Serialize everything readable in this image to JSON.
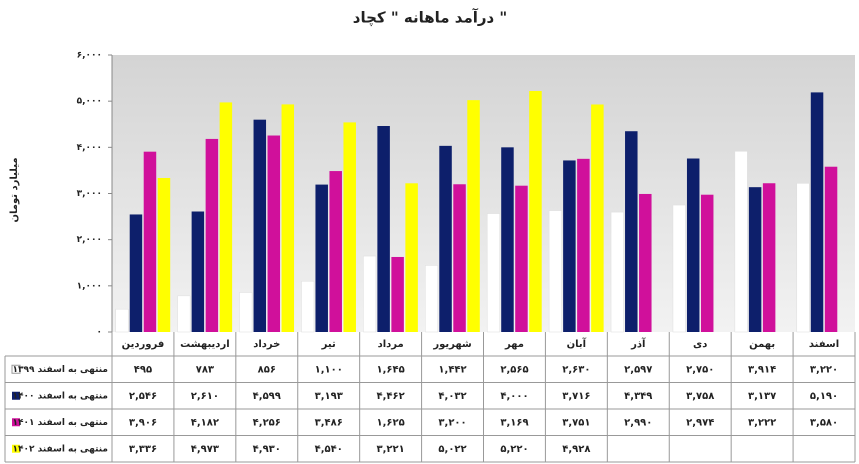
{
  "chart_data": {
    "type": "bar",
    "title": "درآمد ماهانه \" کچاد \"",
    "y_label": "میلیارد تومان",
    "categories": [
      "فروردین",
      "اردیبهشت",
      "خرداد",
      "تیر",
      "مرداد",
      "شهریور",
      "مهر",
      "آبان",
      "آذر",
      "دی",
      "بهمن",
      "اسفند"
    ],
    "ylim": [
      0,
      6000
    ],
    "yticks": [
      {
        "value": 0,
        "label": "۰"
      },
      {
        "value": 1000,
        "label": "۱,۰۰۰"
      },
      {
        "value": 2000,
        "label": "۲,۰۰۰"
      },
      {
        "value": 3000,
        "label": "۳,۰۰۰"
      },
      {
        "value": 4000,
        "label": "۴,۰۰۰"
      },
      {
        "value": 5000,
        "label": "۵,۰۰۰"
      },
      {
        "value": 6000,
        "label": "۶,۰۰۰"
      }
    ],
    "series": [
      {
        "name": "منتهی به اسفند ۱۳۹۹",
        "color": "#ffffff",
        "values": [
          495,
          783,
          856,
          1100,
          1645,
          1442,
          2565,
          2630,
          2597,
          2750,
          3914,
          3220
        ],
        "value_labels": [
          "۴۹۵",
          "۷۸۳",
          "۸۵۶",
          "۱,۱۰۰",
          "۱,۶۴۵",
          "۱,۴۴۲",
          "۲,۵۶۵",
          "۲,۶۳۰",
          "۲,۵۹۷",
          "۲,۷۵۰",
          "۳,۹۱۴",
          "۳,۲۲۰"
        ]
      },
      {
        "name": "منتهی به اسفند ۱۴۰۰",
        "color": "#0d1f6b",
        "values": [
          2546,
          2610,
          4599,
          3193,
          4462,
          4032,
          4000,
          3716,
          4349,
          3758,
          3137,
          5190
        ],
        "value_labels": [
          "۲,۵۴۶",
          "۲,۶۱۰",
          "۴,۵۹۹",
          "۳,۱۹۳",
          "۴,۴۶۲",
          "۴,۰۳۲",
          "۴,۰۰۰",
          "۳,۷۱۶",
          "۴,۳۴۹",
          "۳,۷۵۸",
          "۳,۱۳۷",
          "۵,۱۹۰"
        ]
      },
      {
        "name": "منتهی به اسفند ۱۴۰۱",
        "color": "#d0109b",
        "values": [
          3906,
          4182,
          4256,
          3486,
          1625,
          3200,
          3169,
          3751,
          2990,
          2974,
          3222,
          3580
        ],
        "value_labels": [
          "۳,۹۰۶",
          "۴,۱۸۲",
          "۴,۲۵۶",
          "۳,۴۸۶",
          "۱,۶۲۵",
          "۳,۲۰۰",
          "۳,۱۶۹",
          "۳,۷۵۱",
          "۲,۹۹۰",
          "۲,۹۷۴",
          "۳,۲۲۲",
          "۳,۵۸۰"
        ]
      },
      {
        "name": "منتهی به اسفند ۱۴۰۲",
        "color": "#ffff00",
        "values": [
          3336,
          4973,
          4930,
          4540,
          3221,
          5022,
          5220,
          4928,
          null,
          null,
          null,
          null
        ],
        "value_labels": [
          "۳,۳۳۶",
          "۴,۹۷۳",
          "۴,۹۳۰",
          "۴,۵۴۰",
          "۳,۲۲۱",
          "۵,۰۲۲",
          "۵,۲۲۰",
          "۴,۹۲۸",
          null,
          null,
          null,
          null
        ]
      }
    ]
  }
}
